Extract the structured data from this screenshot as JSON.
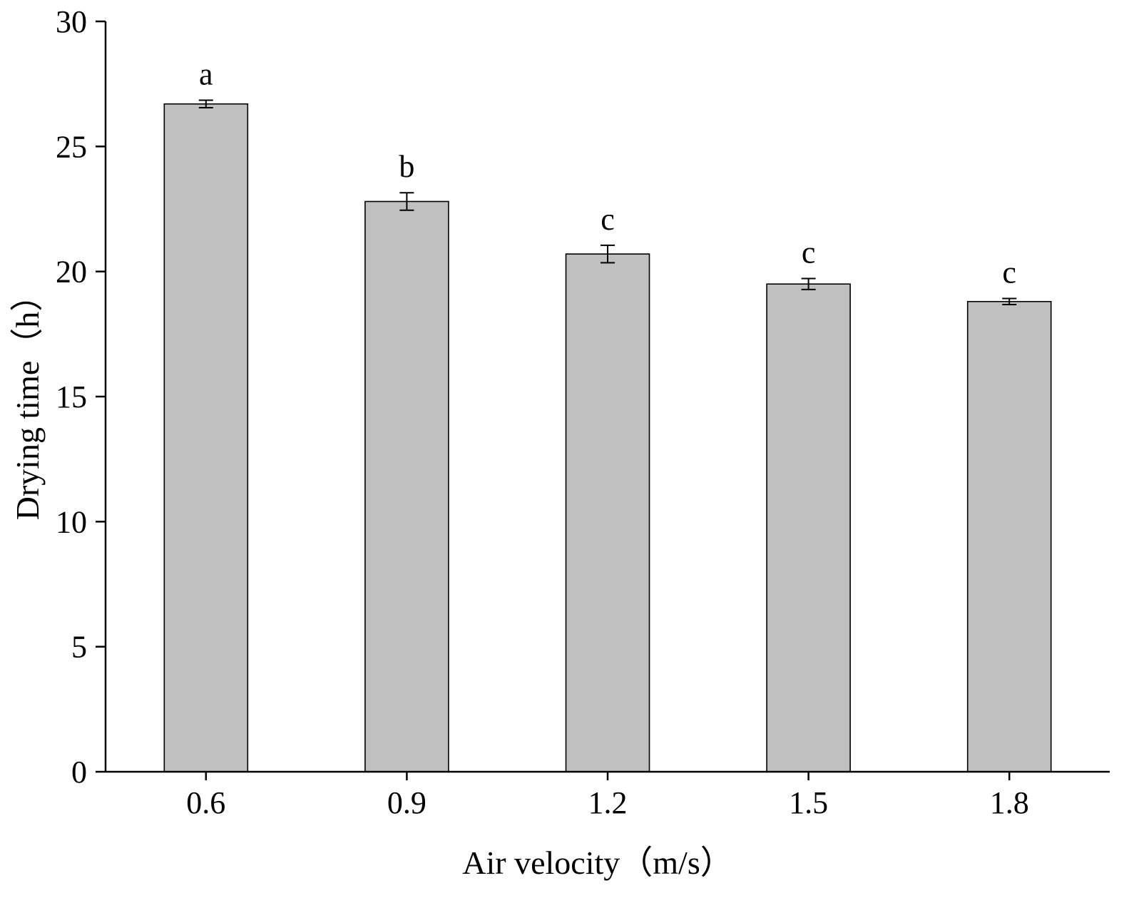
{
  "chart_data": {
    "type": "bar",
    "categories": [
      "0.6",
      "0.9",
      "1.2",
      "1.5",
      "1.8"
    ],
    "values": [
      26.7,
      22.8,
      20.7,
      19.5,
      18.8
    ],
    "errors": [
      0.15,
      0.35,
      0.35,
      0.22,
      0.12
    ],
    "significance_letters": [
      "a",
      "b",
      "c",
      "c",
      "c"
    ],
    "xlabel": "Air velocity（m/s）",
    "ylabel": "Drying time（h）",
    "ylim": [
      0,
      30
    ],
    "yticks": [
      "0",
      "5",
      "10",
      "15",
      "20",
      "25",
      "30"
    ],
    "bar_color": "#c0c0c0",
    "grid": false
  }
}
